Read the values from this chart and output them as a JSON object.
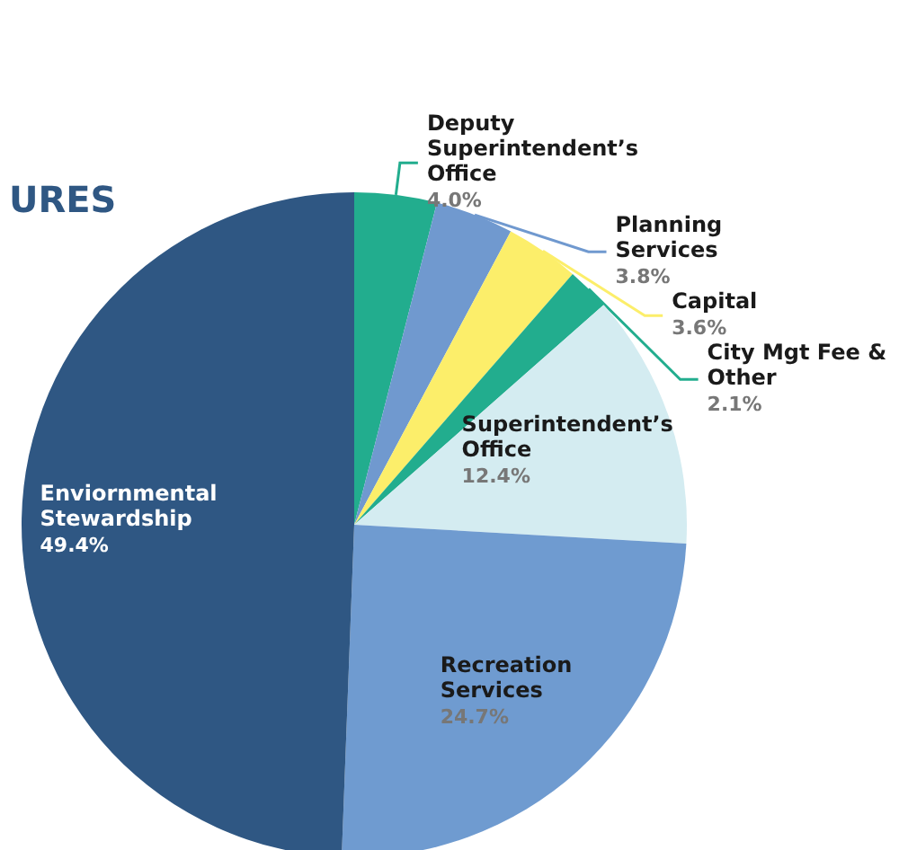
{
  "chart_data": {
    "type": "pie",
    "title": "URES",
    "categories": [
      "Deputy Superintendent’s Office",
      "Planning Services",
      "Capital",
      "City Mgt Fee & Other",
      "Superintendent’s Office",
      "Recreation Services",
      "Enviornmental Stewardship"
    ],
    "values": [
      4.0,
      3.8,
      3.6,
      2.1,
      12.4,
      24.7,
      49.4
    ],
    "value_labels": [
      "4.0%",
      "3.8%",
      "3.6%",
      "2.1%",
      "12.4%",
      "24.7%",
      "49.4%"
    ],
    "colors": [
      "#22ad8e",
      "#7099cf",
      "#fcee6a",
      "#22ad8e",
      "#d4ecf1",
      "#6f9bd0",
      "#2f5783"
    ]
  }
}
